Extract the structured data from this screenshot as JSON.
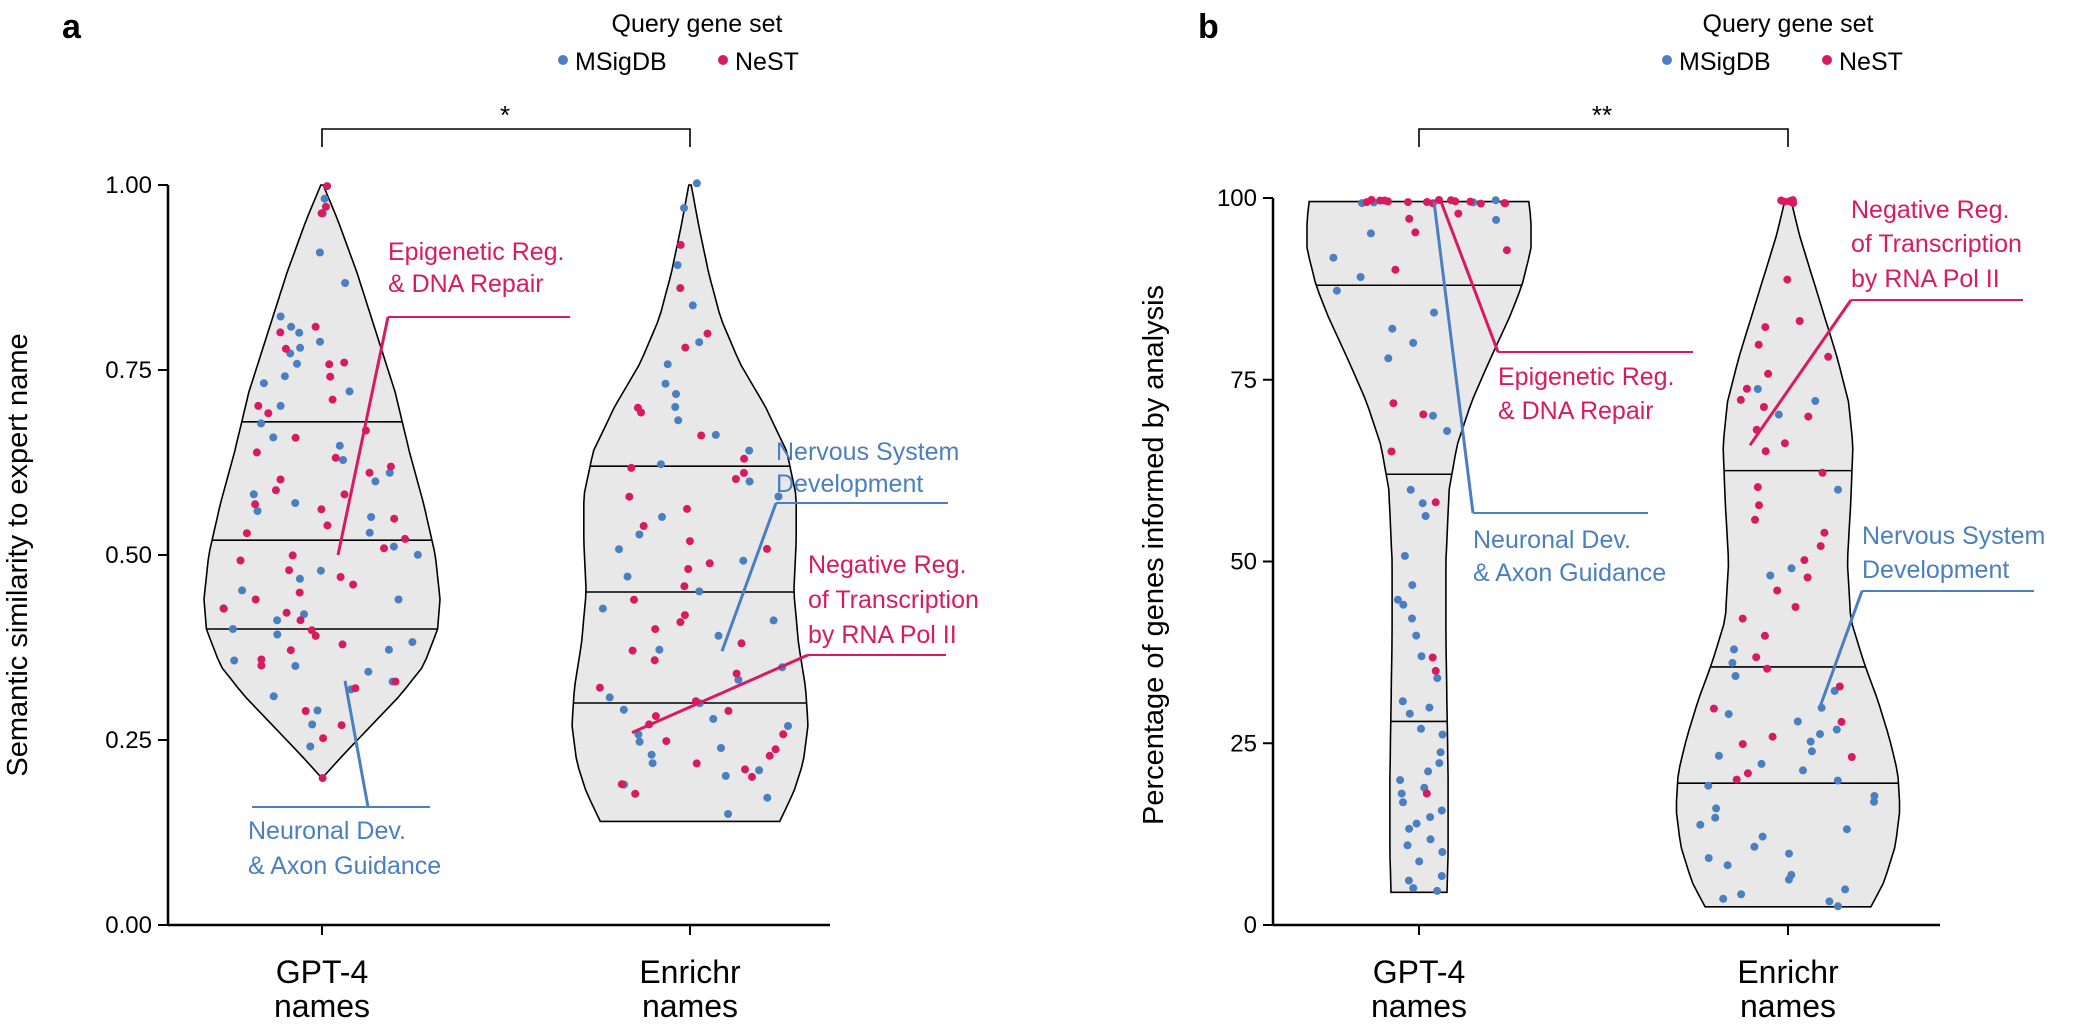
{
  "chart_data": [
    {
      "panel": "a",
      "type": "violin",
      "ylabel": "Semantic similarity to expert name",
      "ylim": [
        0,
        1
      ],
      "yticks": [
        "0.00",
        "0.25",
        "0.50",
        "0.75",
        "1.00"
      ],
      "ytick_values": [
        0,
        0.25,
        0.5,
        0.75,
        1.0
      ],
      "categories": [
        {
          "line1": "GPT-4",
          "line2": "names"
        },
        {
          "line1": "Enrichr",
          "line2": "names"
        }
      ],
      "legend": {
        "title": "Query gene set",
        "entries": [
          "MSigDB",
          "NeST"
        ]
      },
      "significance": "*",
      "violins": [
        {
          "min": 0.2,
          "max": 1.0,
          "quartiles": [
            0.4,
            0.52,
            0.68
          ],
          "profile": [
            [
              0.2,
              0.01
            ],
            [
              0.23,
              0.18
            ],
            [
              0.27,
              0.42
            ],
            [
              0.31,
              0.66
            ],
            [
              0.35,
              0.86
            ],
            [
              0.4,
              0.98
            ],
            [
              0.44,
              1.0
            ],
            [
              0.5,
              0.96
            ],
            [
              0.57,
              0.86
            ],
            [
              0.64,
              0.74
            ],
            [
              0.72,
              0.62
            ],
            [
              0.8,
              0.46
            ],
            [
              0.88,
              0.3
            ],
            [
              0.95,
              0.14
            ],
            [
              1.0,
              0.01
            ]
          ],
          "nest": [
            1.0,
            0.97,
            0.96,
            0.81,
            0.8,
            0.78,
            0.76,
            0.76,
            0.74,
            0.71,
            0.7,
            0.69,
            0.67,
            0.66,
            0.64,
            0.63,
            0.62,
            0.61,
            0.6,
            0.59,
            0.58,
            0.57,
            0.56,
            0.55,
            0.54,
            0.53,
            0.52,
            0.51,
            0.5,
            0.49,
            0.48,
            0.47,
            0.46,
            0.45,
            0.44,
            0.43,
            0.42,
            0.41,
            0.4,
            0.39,
            0.38,
            0.37,
            0.36,
            0.35,
            0.33,
            0.32,
            0.29,
            0.27,
            0.25,
            0.2
          ],
          "msigdb": [
            0.98,
            0.96,
            0.91,
            0.87,
            0.82,
            0.81,
            0.8,
            0.79,
            0.78,
            0.77,
            0.76,
            0.74,
            0.73,
            0.72,
            0.7,
            0.68,
            0.66,
            0.65,
            0.63,
            0.61,
            0.6,
            0.58,
            0.57,
            0.56,
            0.55,
            0.53,
            0.51,
            0.5,
            0.48,
            0.47,
            0.45,
            0.44,
            0.43,
            0.42,
            0.41,
            0.4,
            0.39,
            0.38,
            0.37,
            0.36,
            0.35,
            0.34,
            0.33,
            0.32,
            0.31,
            0.29,
            0.27,
            0.24
          ]
        },
        {
          "min": 0.14,
          "max": 1.0,
          "quartiles": [
            0.3,
            0.45,
            0.62
          ],
          "profile": [
            [
              0.14,
              0.76
            ],
            [
              0.18,
              0.88
            ],
            [
              0.22,
              0.96
            ],
            [
              0.27,
              1.0
            ],
            [
              0.32,
              0.98
            ],
            [
              0.38,
              0.92
            ],
            [
              0.45,
              0.88
            ],
            [
              0.52,
              0.9
            ],
            [
              0.58,
              0.9
            ],
            [
              0.64,
              0.82
            ],
            [
              0.7,
              0.64
            ],
            [
              0.76,
              0.42
            ],
            [
              0.82,
              0.26
            ],
            [
              0.88,
              0.16
            ],
            [
              0.94,
              0.08
            ],
            [
              1.0,
              0.01
            ]
          ],
          "nest": [
            0.92,
            0.86,
            0.8,
            0.78,
            0.7,
            0.69,
            0.66,
            0.63,
            0.62,
            0.61,
            0.6,
            0.58,
            0.56,
            0.54,
            0.52,
            0.51,
            0.49,
            0.48,
            0.46,
            0.44,
            0.42,
            0.41,
            0.4,
            0.38,
            0.37,
            0.36,
            0.34,
            0.32,
            0.3,
            0.29,
            0.28,
            0.27,
            0.26,
            0.25,
            0.24,
            0.23,
            0.22,
            0.21,
            0.2,
            0.19,
            0.18
          ],
          "msigdb": [
            1.0,
            0.97,
            0.89,
            0.84,
            0.79,
            0.76,
            0.73,
            0.72,
            0.7,
            0.68,
            0.66,
            0.64,
            0.62,
            0.6,
            0.58,
            0.55,
            0.53,
            0.51,
            0.49,
            0.47,
            0.45,
            0.43,
            0.41,
            0.39,
            0.37,
            0.35,
            0.33,
            0.31,
            0.3,
            0.29,
            0.28,
            0.27,
            0.26,
            0.25,
            0.24,
            0.23,
            0.22,
            0.21,
            0.2,
            0.19,
            0.17,
            0.15
          ]
        }
      ],
      "annotations": [
        {
          "text_lines": [
            "Epigenetic Reg.",
            "& DNA Repair"
          ],
          "color": "#d81b60",
          "group": 0,
          "target_value": 0.5
        },
        {
          "text_lines": [
            "Neuronal Dev.",
            "& Axon Guidance"
          ],
          "color": "#4a7fc1",
          "group": 0,
          "target_value": 0.33
        },
        {
          "text_lines": [
            "Nervous System",
            "Development"
          ],
          "color": "#4a7fc1",
          "group": 1,
          "target_value": 0.37
        },
        {
          "text_lines": [
            "Negative Reg.",
            "of Transcription",
            "by RNA Pol II"
          ],
          "color": "#d81b60",
          "group": 1,
          "target_value": 0.26
        }
      ]
    },
    {
      "panel": "b",
      "type": "violin",
      "ylabel": "Percentage of genes informed by analysis",
      "ylim": [
        0,
        100
      ],
      "yticks": [
        "0",
        "25",
        "50",
        "75",
        "100"
      ],
      "ytick_values": [
        0,
        25,
        50,
        75,
        100
      ],
      "categories": [
        {
          "line1": "GPT-4",
          "line2": "names"
        },
        {
          "line1": "Enrichr",
          "line2": "names"
        }
      ],
      "legend": {
        "title": "Query gene set",
        "entries": [
          "MSigDB",
          "NeST"
        ]
      },
      "significance": "**",
      "violins": [
        {
          "min": 4.5,
          "max": 99.5,
          "quartiles": [
            28,
            62,
            88
          ],
          "profile": [
            [
              4.5,
              0.25
            ],
            [
              10,
              0.26
            ],
            [
              20,
              0.26
            ],
            [
              30,
              0.25
            ],
            [
              40,
              0.24
            ],
            [
              50,
              0.24
            ],
            [
              60,
              0.27
            ],
            [
              66,
              0.34
            ],
            [
              72,
              0.47
            ],
            [
              78,
              0.64
            ],
            [
              84,
              0.82
            ],
            [
              88,
              0.92
            ],
            [
              93,
              1.0
            ],
            [
              97,
              1.0
            ],
            [
              99.5,
              0.98
            ]
          ],
          "nest": [
            99.5,
            99.5,
            99.5,
            99.5,
            99.5,
            99.5,
            99.5,
            99.5,
            99.5,
            99.5,
            99.5,
            99.5,
            99.5,
            99.5,
            99.5,
            98,
            97,
            95,
            93,
            90,
            72,
            70,
            65,
            58,
            37,
            35,
            18
          ],
          "msigdb": [
            99.5,
            99.5,
            99.5,
            99.5,
            97,
            95,
            92,
            89,
            87,
            84,
            82,
            80,
            78,
            70,
            68,
            60,
            58,
            56,
            51,
            47,
            45,
            44,
            42,
            40,
            37,
            34,
            31,
            30,
            29,
            27,
            26,
            24,
            22,
            21,
            20,
            19,
            18,
            17,
            16,
            15,
            14,
            13,
            12,
            11,
            10,
            9,
            7,
            6,
            5,
            4.5
          ]
        },
        {
          "min": 2.5,
          "max": 99.5,
          "quartiles": [
            19.5,
            35.5,
            62.5
          ],
          "profile": [
            [
              2.5,
              0.74
            ],
            [
              6,
              0.86
            ],
            [
              11,
              0.96
            ],
            [
              16,
              1.0
            ],
            [
              21,
              0.98
            ],
            [
              26,
              0.9
            ],
            [
              31,
              0.8
            ],
            [
              36,
              0.68
            ],
            [
              42,
              0.56
            ],
            [
              50,
              0.53
            ],
            [
              58,
              0.56
            ],
            [
              66,
              0.58
            ],
            [
              72,
              0.54
            ],
            [
              78,
              0.44
            ],
            [
              84,
              0.32
            ],
            [
              90,
              0.2
            ],
            [
              95,
              0.1
            ],
            [
              99.5,
              0.03
            ]
          ],
          "nest": [
            99.5,
            99.5,
            99.5,
            99.5,
            99.5,
            89,
            83,
            82,
            80,
            78,
            76,
            74,
            72,
            71,
            70,
            68,
            66,
            65,
            62,
            60,
            58,
            56,
            54,
            52,
            50,
            48,
            46,
            44,
            42,
            40,
            37,
            35,
            33,
            30,
            28,
            26,
            25,
            23,
            21,
            20
          ],
          "msigdb": [
            74,
            72,
            70,
            60,
            49,
            48,
            38,
            36,
            34,
            32,
            30,
            29,
            28,
            27,
            26,
            25,
            24,
            23,
            22,
            21,
            20,
            19,
            18,
            17,
            16,
            15,
            14,
            13,
            12,
            11,
            10,
            9,
            8,
            7,
            6,
            5,
            4,
            3.5,
            3,
            2.5
          ]
        }
      ],
      "annotations": [
        {
          "text_lines": [
            "Epigenetic Reg.",
            "& DNA Repair"
          ],
          "color": "#d81b60",
          "group": 0,
          "target_value": 99.5
        },
        {
          "text_lines": [
            "Neuronal Dev.",
            "& Axon Guidance"
          ],
          "color": "#4a7fc1",
          "group": 0,
          "target_value": 99.5
        },
        {
          "text_lines": [
            "Negative Reg.",
            "of Transcription",
            "by RNA Pol II"
          ],
          "color": "#d81b60",
          "group": 1,
          "target_value": 66
        },
        {
          "text_lines": [
            "Nervous System",
            "Development"
          ],
          "color": "#4a7fc1",
          "group": 1,
          "target_value": 30
        }
      ]
    }
  ],
  "colors": {
    "msigdb": "#4a7fc1",
    "nest": "#d81b60",
    "violin_fill": "#e8e8e8",
    "line": "#000000"
  }
}
